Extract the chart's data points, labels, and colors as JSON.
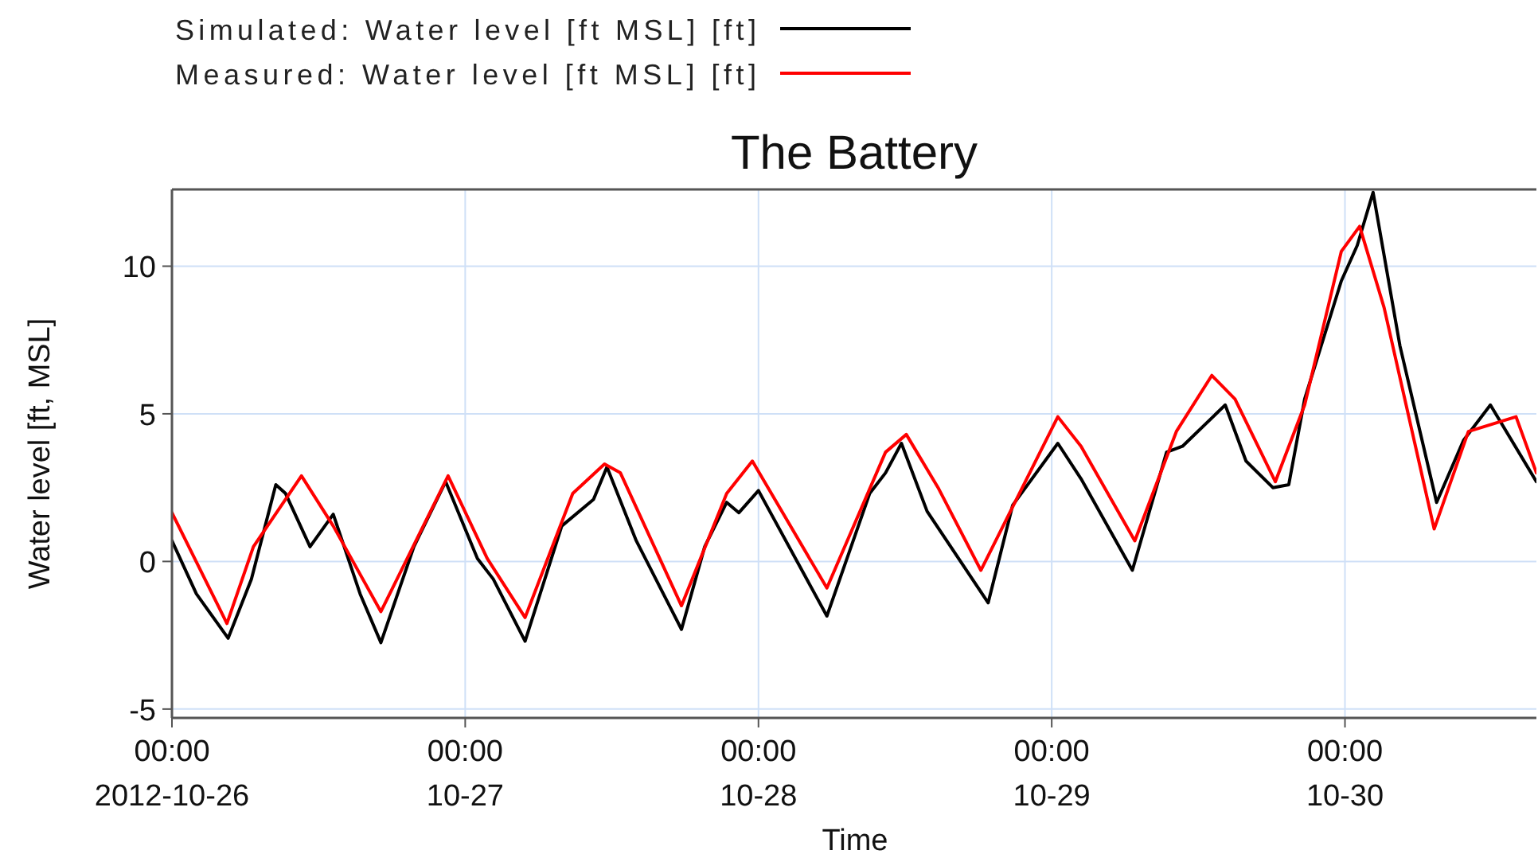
{
  "chart_data": {
    "type": "line",
    "title": "The Battery",
    "xlabel": "Time",
    "ylabel": "Water level [ft, MSL]",
    "xlim": [
      "2012-10-26T00:00",
      "2012-10-30T15:40"
    ],
    "xticks": [
      {
        "value": "2012-10-26",
        "label": "00:00\n2012-10-26"
      },
      {
        "value": "2012-10-27",
        "label": "00:00\n10-27"
      },
      {
        "value": "2012-10-28",
        "label": "00:00\n10-28"
      },
      {
        "value": "2012-10-29",
        "label": "00:00\n10-29"
      },
      {
        "value": "2012-10-30",
        "label": "00:00\n10-30"
      }
    ],
    "ylim": [
      -5.3,
      12.6
    ],
    "yticks": [
      -5,
      0,
      5,
      10
    ],
    "grid": true,
    "legend": "top left",
    "line_style": "solid",
    "marker": "none",
    "series": [
      {
        "name": "Simulated: Water level [ft MSL] [ft]",
        "color": "#000000",
        "x": [
          "2012-10-26T00:00",
          "2012-10-26T02:00",
          "2012-10-26T04:36",
          "2012-10-26T06:30",
          "2012-10-26T08:30",
          "2012-10-26T09:18",
          "2012-10-26T11:18",
          "2012-10-26T13:12",
          "2012-10-26T15:24",
          "2012-10-26T17:06",
          "2012-10-26T19:48",
          "2012-10-26T22:24",
          "2012-10-27T01:00",
          "2012-10-27T02:18",
          "2012-10-27T04:54",
          "2012-10-27T07:54",
          "2012-10-27T10:30",
          "2012-10-27T11:36",
          "2012-10-27T14:00",
          "2012-10-27T17:42",
          "2012-10-27T19:36",
          "2012-10-27T21:24",
          "2012-10-27T22:24",
          "2012-10-28T00:00",
          "2012-10-28T05:36",
          "2012-10-28T09:06",
          "2012-10-28T10:24",
          "2012-10-28T11:42",
          "2012-10-28T13:48",
          "2012-10-28T18:48",
          "2012-10-28T20:48",
          "2012-10-29T00:30",
          "2012-10-29T02:24",
          "2012-10-29T06:36",
          "2012-10-29T09:24",
          "2012-10-29T10:42",
          "2012-10-29T14:12",
          "2012-10-29T15:54",
          "2012-10-29T18:06",
          "2012-10-29T19:24",
          "2012-10-29T20:42",
          "2012-10-29T23:42",
          "2012-10-30T01:00",
          "2012-10-30T02:18",
          "2012-10-30T04:30",
          "2012-10-30T07:30",
          "2012-10-30T09:42",
          "2012-10-30T11:54",
          "2012-10-30T15:40"
        ],
        "values": [
          0.7,
          -1.1,
          -2.6,
          -0.6,
          2.6,
          2.3,
          0.5,
          1.6,
          -1.1,
          -2.75,
          0.5,
          2.7,
          0.1,
          -0.6,
          -2.7,
          1.2,
          2.1,
          3.2,
          0.7,
          -2.3,
          0.5,
          2.0,
          1.65,
          2.4,
          -1.85,
          2.3,
          3.0,
          4.0,
          1.7,
          -1.4,
          1.9,
          4.0,
          2.8,
          -0.3,
          3.7,
          3.9,
          5.3,
          3.4,
          2.5,
          2.6,
          5.5,
          9.5,
          10.7,
          12.5,
          7.3,
          2.0,
          4.1,
          5.3,
          2.7
        ]
      },
      {
        "name": "Measured: Water level [ft MSL] [ft]",
        "color": "#ff0000",
        "x": [
          "2012-10-26T00:00",
          "2012-10-26T04:30",
          "2012-10-26T06:40",
          "2012-10-26T10:36",
          "2012-10-26T13:12",
          "2012-10-26T17:06",
          "2012-10-26T22:36",
          "2012-10-27T01:48",
          "2012-10-27T04:54",
          "2012-10-27T08:48",
          "2012-10-27T11:24",
          "2012-10-27T12:42",
          "2012-10-27T17:42",
          "2012-10-27T21:24",
          "2012-10-27T23:30",
          "2012-10-28T05:36",
          "2012-10-28T10:24",
          "2012-10-28T12:06",
          "2012-10-28T14:42",
          "2012-10-28T18:12",
          "2012-10-29T00:30",
          "2012-10-29T02:24",
          "2012-10-29T06:48",
          "2012-10-29T10:12",
          "2012-10-29T13:06",
          "2012-10-29T15:00",
          "2012-10-29T18:18",
          "2012-10-29T20:42",
          "2012-10-29T23:42",
          "2012-10-30T01:12",
          "2012-10-30T03:12",
          "2012-10-30T07:18",
          "2012-10-30T10:06",
          "2012-10-30T14:00",
          "2012-10-30T15:40"
        ],
        "values": [
          1.65,
          -2.1,
          0.5,
          2.9,
          1.2,
          -1.7,
          2.9,
          0.1,
          -1.9,
          2.3,
          3.3,
          3.0,
          -1.5,
          2.3,
          3.4,
          -0.9,
          3.7,
          4.3,
          2.5,
          -0.3,
          4.9,
          3.9,
          0.7,
          4.4,
          6.3,
          5.5,
          2.7,
          5.3,
          10.5,
          11.35,
          8.6,
          1.1,
          4.4,
          4.9,
          3.0
        ]
      }
    ]
  }
}
